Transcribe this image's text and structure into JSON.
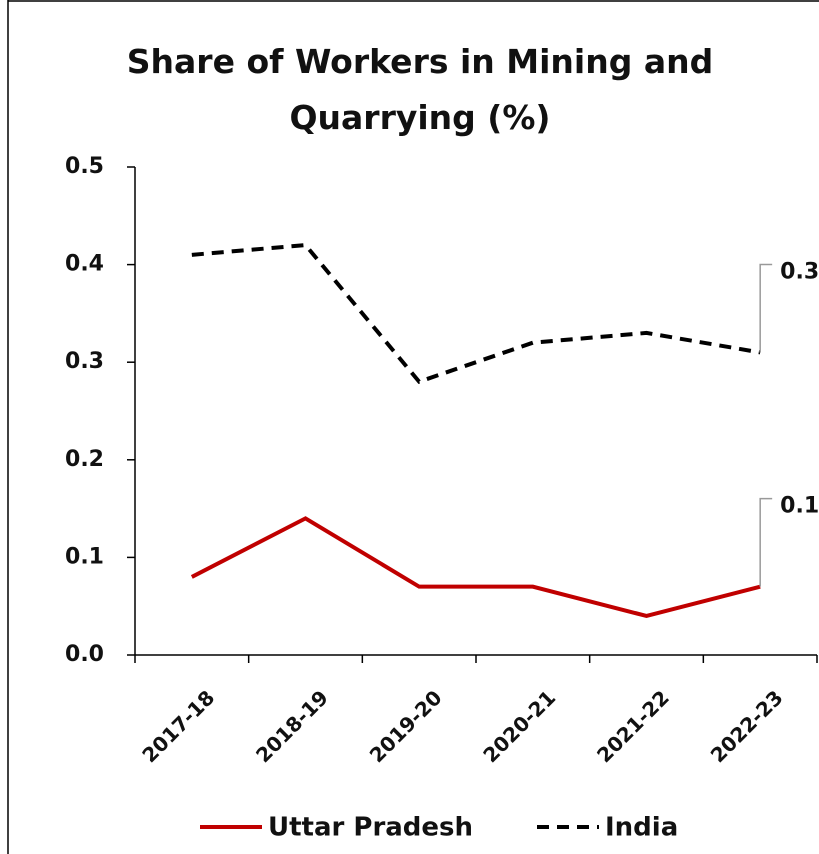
{
  "chart_data": {
    "type": "line",
    "title": "Share of Workers in Mining and Quarrying (%)",
    "categories": [
      "2017-18",
      "2018-19",
      "2019-20",
      "2020-21",
      "2021-22",
      "2022-23"
    ],
    "series": [
      {
        "name": "Uttar Pradesh",
        "color": "#c00000",
        "dash": "solid",
        "values": [
          0.08,
          0.14,
          0.07,
          0.07,
          0.04,
          0.07
        ],
        "value_labels": [
          null,
          null,
          null,
          null,
          null,
          "0.1"
        ]
      },
      {
        "name": "India",
        "color": "#000000",
        "dash": "dashed",
        "values": [
          0.41,
          0.42,
          0.28,
          0.32,
          0.33,
          0.31
        ],
        "value_labels": [
          null,
          null,
          null,
          null,
          null,
          "0.3"
        ]
      }
    ],
    "ylim": [
      0,
      0.5
    ],
    "yticks": [
      {
        "value": 0,
        "label": "0.0"
      },
      0.1,
      0.2,
      0.3,
      0.4,
      0.5
    ],
    "grid": false,
    "legend": "bottom"
  }
}
